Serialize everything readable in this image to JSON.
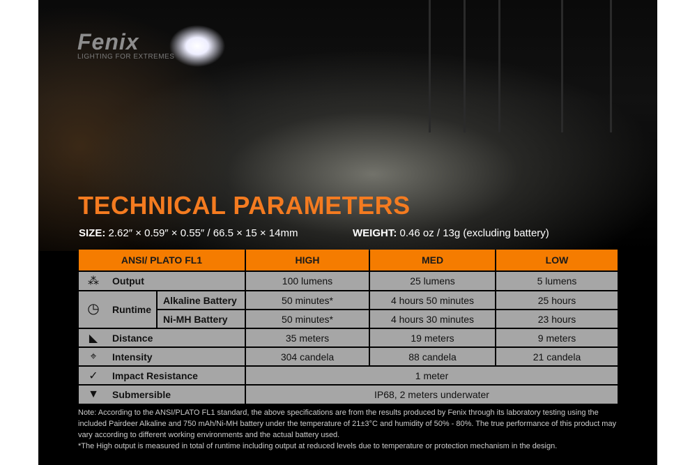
{
  "brand": {
    "logo": "Fenix",
    "tagline": "LIGHTING FOR EXTREMES"
  },
  "title": "TECHNICAL PARAMETERS",
  "size": {
    "label": "SIZE:",
    "value": "2.62″ × 0.59″ × 0.55″ / 66.5 × 15 × 14mm"
  },
  "weight": {
    "label": "WEIGHT:",
    "value": "0.46 oz / 13g (excluding battery)"
  },
  "table": {
    "headers": [
      "ANSI/ PLATO  FL1",
      "HIGH",
      "MED",
      "LOW"
    ],
    "output": {
      "label": "Output",
      "icon": "burst-icon",
      "values": [
        "100 lumens",
        "25 lumens",
        "5 lumens"
      ]
    },
    "runtime": {
      "label": "Runtime",
      "icon": "clock-icon",
      "alkaline": {
        "label": "Alkaline Battery",
        "values": [
          "50 minutes*",
          "4 hours 50 minutes",
          "25 hours"
        ]
      },
      "nimh": {
        "label": "Ni-MH Battery",
        "values": [
          "50 minutes*",
          "4 hours 30 minutes",
          "23 hours"
        ]
      }
    },
    "distance": {
      "label": "Distance",
      "icon": "beam-distance-icon",
      "values": [
        "35 meters",
        "19 meters",
        "9 meters"
      ]
    },
    "intensity": {
      "label": "Intensity",
      "icon": "target-icon",
      "values": [
        "304 candela",
        "88 candela",
        "21 candela"
      ]
    },
    "impact": {
      "label": "Impact Resistance",
      "icon": "impact-icon",
      "value": "1 meter"
    },
    "submersible": {
      "label": "Submersible",
      "icon": "water-icon",
      "value": "IP68, 2 meters underwater"
    }
  },
  "notes": [
    "Note: According to the ANSI/PLATO FL1 standard, the above specifications are from the results produced by Fenix through its laboratory testing using the included Pairdeer Alkaline and 750 mAh/Ni-MH battery under the temperature of 21±3°C and humidity of 50% - 80%. The true performance of this product may vary according to different working environments and the actual battery used.",
    "*The High output is measured in total of runtime including output at reduced levels due to temperature or protection mechanism in the design."
  ],
  "colors": {
    "accent": "#f57c00",
    "cell": "#a6a6a6",
    "background": "#000000"
  }
}
